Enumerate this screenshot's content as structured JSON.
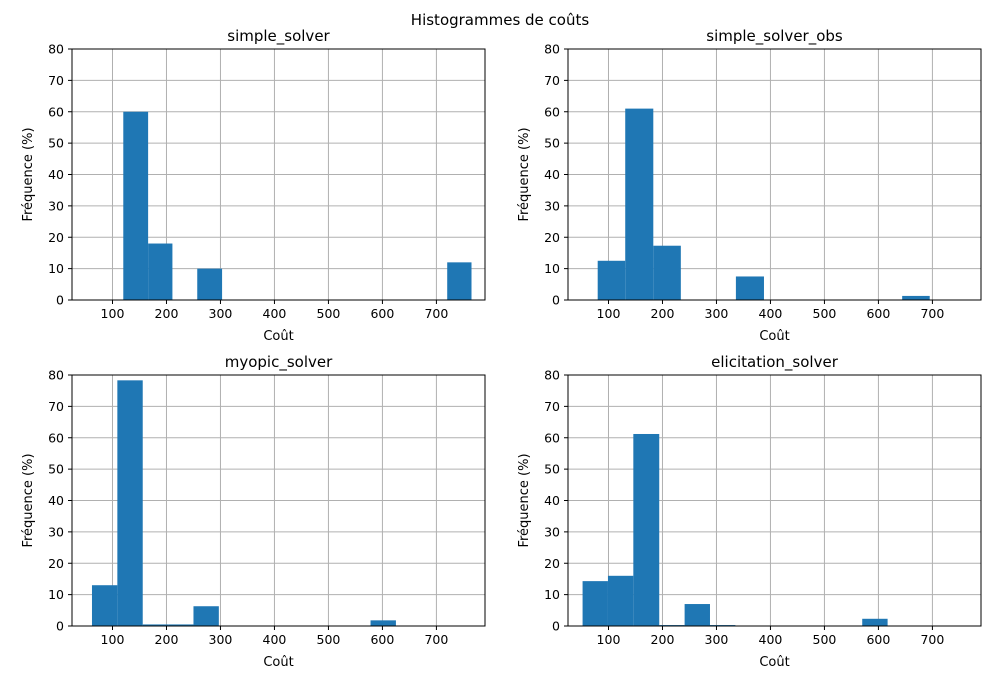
{
  "figure": {
    "title": "Histogrammes de coûts"
  },
  "colors": {
    "bar": "#1f77b4",
    "grid": "#b0b0b0",
    "axis": "#000000"
  },
  "chart_data": [
    {
      "type": "bar",
      "title": "simple_solver",
      "xlabel": "Coût",
      "ylabel": "Fréquence (%)",
      "xlim": [
        25,
        790
      ],
      "ylim": [
        0,
        80
      ],
      "xticks": [
        100,
        200,
        300,
        400,
        500,
        600,
        700
      ],
      "yticks": [
        0,
        10,
        20,
        30,
        40,
        50,
        60,
        70,
        80
      ],
      "grid": true,
      "bins": [
        {
          "x0": 120,
          "x1": 166,
          "value": 60
        },
        {
          "x0": 166,
          "x1": 211,
          "value": 18
        },
        {
          "x0": 257,
          "x1": 303,
          "value": 10
        },
        {
          "x0": 720,
          "x1": 765,
          "value": 12
        }
      ]
    },
    {
      "type": "bar",
      "title": "simple_solver_obs",
      "xlabel": "Coût",
      "ylabel": "Fréquence (%)",
      "xlim": [
        25,
        790
      ],
      "ylim": [
        0,
        80
      ],
      "xticks": [
        100,
        200,
        300,
        400,
        500,
        600,
        700
      ],
      "yticks": [
        0,
        10,
        20,
        30,
        40,
        50,
        60,
        70,
        80
      ],
      "grid": true,
      "bins": [
        {
          "x0": 80,
          "x1": 131,
          "value": 12.5
        },
        {
          "x0": 131,
          "x1": 183,
          "value": 61
        },
        {
          "x0": 183,
          "x1": 234,
          "value": 17.3
        },
        {
          "x0": 336,
          "x1": 388,
          "value": 7.5
        },
        {
          "x0": 644,
          "x1": 695,
          "value": 1.3
        }
      ]
    },
    {
      "type": "bar",
      "title": "myopic_solver",
      "xlabel": "Coût",
      "ylabel": "Fréquence (%)",
      "xlim": [
        25,
        790
      ],
      "ylim": [
        0,
        80
      ],
      "xticks": [
        100,
        200,
        300,
        400,
        500,
        600,
        700
      ],
      "yticks": [
        0,
        10,
        20,
        30,
        40,
        50,
        60,
        70,
        80
      ],
      "grid": true,
      "bins": [
        {
          "x0": 62,
          "x1": 109,
          "value": 13
        },
        {
          "x0": 109,
          "x1": 156,
          "value": 78.3
        },
        {
          "x0": 156,
          "x1": 203,
          "value": 0.5
        },
        {
          "x0": 203,
          "x1": 250,
          "value": 0.5
        },
        {
          "x0": 250,
          "x1": 297,
          "value": 6.3
        },
        {
          "x0": 578,
          "x1": 625,
          "value": 1.8
        }
      ]
    },
    {
      "type": "bar",
      "title": "elicitation_solver",
      "xlabel": "Coût",
      "ylabel": "Fréquence (%)",
      "xlim": [
        25,
        790
      ],
      "ylim": [
        0,
        80
      ],
      "xticks": [
        100,
        200,
        300,
        400,
        500,
        600,
        700
      ],
      "yticks": [
        0,
        10,
        20,
        30,
        40,
        50,
        60,
        70,
        80
      ],
      "grid": true,
      "bins": [
        {
          "x0": 52,
          "x1": 99,
          "value": 14.3
        },
        {
          "x0": 99,
          "x1": 146,
          "value": 16
        },
        {
          "x0": 146,
          "x1": 194,
          "value": 61.2
        },
        {
          "x0": 194,
          "x1": 241,
          "value": 0.3
        },
        {
          "x0": 241,
          "x1": 288,
          "value": 7
        },
        {
          "x0": 288,
          "x1": 335,
          "value": 0.3
        },
        {
          "x0": 570,
          "x1": 617,
          "value": 2.3
        }
      ]
    }
  ]
}
